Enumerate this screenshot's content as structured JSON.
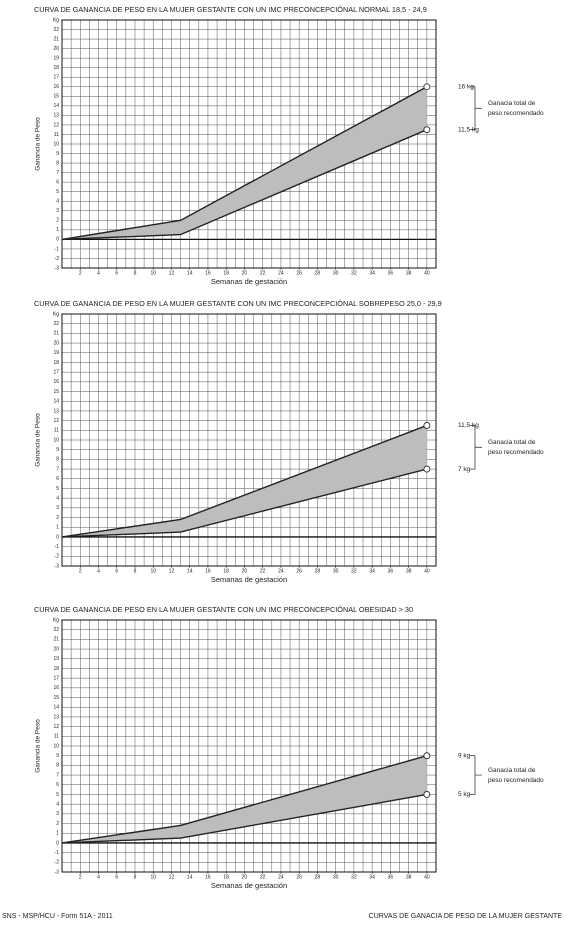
{
  "chart_data": [
    {
      "type": "line",
      "title": "CURVA DE GANANCIA DE PESO EN LA MUJER GESTANTE CON UN  IMC  PRECONCEPCIÓNAL NORMAL  18,5 - 24,9",
      "x_label": "Semanas de gestación",
      "y_label": "Ganancia de Peso",
      "x": [
        0,
        13,
        40
      ],
      "series": [
        {
          "color": "#222222",
          "values": [
            0,
            2,
            16
          ],
          "value_labels": [
            null,
            null,
            "16 kg"
          ]
        },
        {
          "color": "#222222",
          "values": [
            0,
            0.5,
            11.5
          ],
          "value_labels": [
            null,
            null,
            "11,5 kg"
          ]
        }
      ],
      "band_color": "#bdbdbd",
      "annotation": [
        "Ganacia total de",
        "peso recomendado"
      ],
      "xlim": [
        0,
        41
      ],
      "xticks": [
        2,
        4,
        6,
        8,
        10,
        12,
        14,
        16,
        18,
        20,
        22,
        24,
        26,
        28,
        30,
        32,
        34,
        36,
        38,
        40
      ],
      "ylim": [
        -3,
        23
      ],
      "yticks": [
        -3,
        -2,
        -1,
        0,
        1,
        2,
        3,
        4,
        5,
        6,
        7,
        8,
        9,
        10,
        11,
        12,
        13,
        14,
        15,
        16,
        17,
        18,
        19,
        20,
        21,
        22,
        {
          "value": 23,
          "label": "Kg"
        }
      ],
      "grid": true
    },
    {
      "type": "line",
      "title": "CURVA DE GANANCIA DE PESO EN LA MUJER GESTANTE CON UN  IMC  PRECONCEPCIÓNAL SOBREPESO 25,0 - 29,9",
      "x_label": "Semanas de gestación",
      "y_label": "Ganancia de Peso",
      "x": [
        0,
        13,
        40
      ],
      "series": [
        {
          "color": "#222222",
          "values": [
            0,
            1.8,
            11.5
          ],
          "value_labels": [
            null,
            null,
            "11,5 kg"
          ]
        },
        {
          "color": "#222222",
          "values": [
            0,
            0.5,
            7
          ],
          "value_labels": [
            null,
            null,
            "7 kg"
          ]
        }
      ],
      "band_color": "#bdbdbd",
      "annotation": [
        "Ganacia total de",
        "peso recomendado"
      ],
      "xlim": [
        0,
        41
      ],
      "xticks": [
        2,
        4,
        6,
        8,
        10,
        12,
        14,
        16,
        18,
        20,
        22,
        24,
        26,
        28,
        30,
        32,
        34,
        36,
        38,
        40
      ],
      "ylim": [
        -3,
        23
      ],
      "yticks": [
        -3,
        -2,
        -1,
        0,
        1,
        2,
        3,
        4,
        5,
        6,
        7,
        8,
        9,
        10,
        11,
        12,
        13,
        14,
        15,
        16,
        17,
        18,
        19,
        20,
        21,
        22,
        {
          "value": 23,
          "label": "Kg"
        }
      ],
      "grid": true
    },
    {
      "type": "line",
      "title": "CURVA DE GANANCIA DE PESO EN LA MUJER GESTANTE CON UN  IMC  PRECONCEPCIÓNAL OBESIDAD  > 30",
      "x_label": "Semanas de gestación",
      "y_label": "Ganancia de Peso",
      "x": [
        0,
        13,
        40
      ],
      "series": [
        {
          "color": "#222222",
          "values": [
            0,
            1.8,
            9
          ],
          "value_labels": [
            null,
            null,
            "9 kg"
          ]
        },
        {
          "color": "#222222",
          "values": [
            0,
            0.5,
            5
          ],
          "value_labels": [
            null,
            null,
            "5 kg"
          ]
        }
      ],
      "band_color": "#bdbdbd",
      "annotation": [
        "Ganacia total de",
        "peso recomendado"
      ],
      "xlim": [
        0,
        41
      ],
      "xticks": [
        2,
        4,
        6,
        8,
        10,
        12,
        14,
        16,
        18,
        20,
        22,
        24,
        26,
        28,
        30,
        32,
        34,
        36,
        38,
        40
      ],
      "ylim": [
        -3,
        23
      ],
      "yticks": [
        -3,
        -2,
        -1,
        0,
        1,
        2,
        3,
        4,
        5,
        6,
        7,
        8,
        9,
        10,
        11,
        12,
        13,
        14,
        15,
        16,
        17,
        18,
        19,
        20,
        21,
        22,
        {
          "value": 23,
          "label": "Kg"
        }
      ],
      "grid": true
    }
  ],
  "footer": {
    "left": "SNS - MSP/HCU - Form 51A - 2011",
    "right": "CURVAS DE GANACIA DE PESO DE LA MUJER GESTANTE"
  }
}
